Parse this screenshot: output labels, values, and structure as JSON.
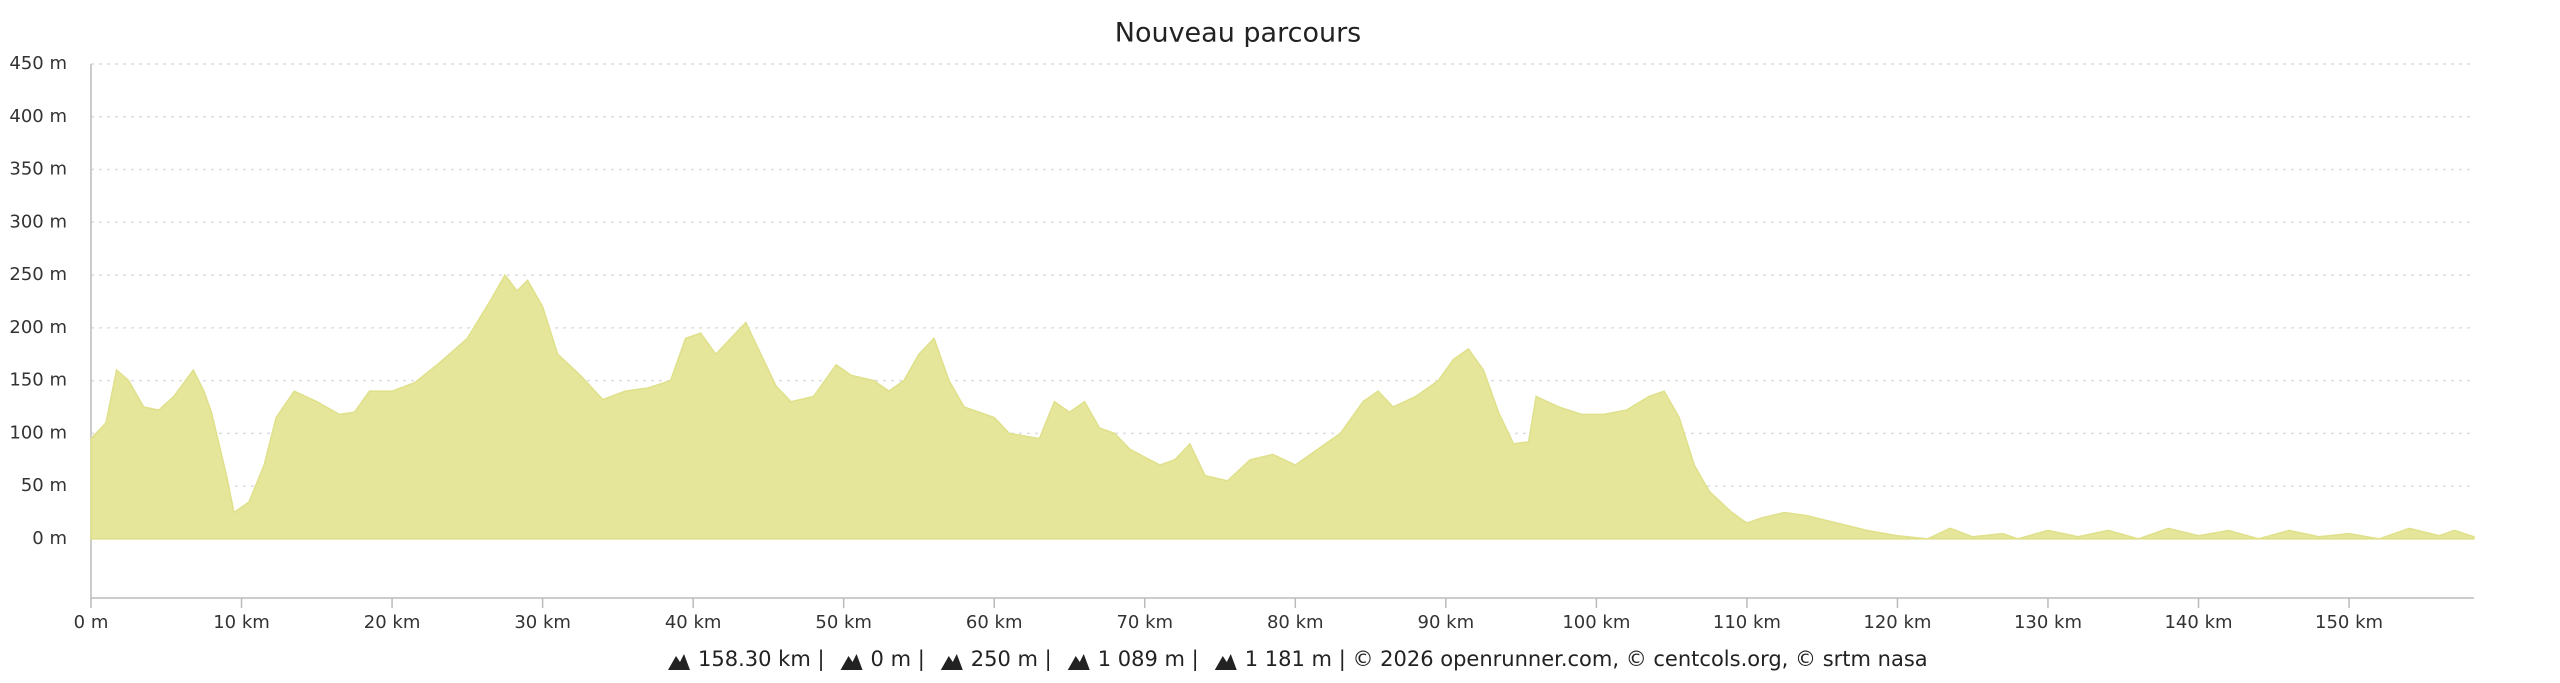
{
  "chart_data": {
    "type": "area",
    "title": "Nouveau parcours",
    "x": [
      0,
      1,
      1.7,
      2.5,
      3.5,
      4.5,
      5.5,
      6.8,
      7.5,
      8,
      9,
      9.5,
      10.5,
      11.5,
      12.3,
      13.5,
      15,
      16.5,
      17.5,
      18.5,
      20,
      21.5,
      23,
      25,
      26.5,
      27.5,
      28.3,
      29,
      30,
      31,
      32.5,
      34,
      35.5,
      37,
      38.5,
      39.5,
      40.5,
      41.5,
      42.5,
      43.5,
      44.5,
      45.5,
      46.5,
      48,
      49.5,
      50.5,
      52,
      53,
      54,
      55,
      56,
      57,
      58,
      60,
      61,
      63,
      64,
      65,
      66,
      67,
      68,
      69,
      71,
      72,
      73,
      74,
      75.5,
      77,
      78.5,
      80,
      81,
      83,
      84.5,
      85.5,
      86.5,
      88,
      89.5,
      90.5,
      91.5,
      92.5,
      93.5,
      94.5,
      95.5,
      96,
      97.5,
      99,
      100.5,
      102,
      103.5,
      104.5,
      105.5,
      106.5,
      107.5,
      109,
      110,
      111,
      112.5,
      114,
      116,
      118,
      120,
      122,
      123.5,
      125,
      127,
      128,
      130,
      132,
      134,
      136,
      138,
      140,
      142,
      144,
      146,
      148,
      150,
      152,
      154,
      156,
      157,
      158.3
    ],
    "values": [
      95,
      110,
      160,
      150,
      125,
      122,
      135,
      160,
      140,
      120,
      60,
      25,
      35,
      70,
      115,
      140,
      130,
      118,
      120,
      140,
      140,
      148,
      165,
      190,
      225,
      250,
      235,
      245,
      220,
      175,
      155,
      132,
      140,
      143,
      150,
      190,
      195,
      175,
      190,
      205,
      175,
      145,
      130,
      135,
      165,
      155,
      150,
      140,
      150,
      175,
      190,
      150,
      125,
      115,
      100,
      95,
      130,
      120,
      130,
      105,
      100,
      85,
      70,
      75,
      90,
      60,
      55,
      75,
      80,
      70,
      80,
      100,
      130,
      140,
      125,
      135,
      150,
      170,
      180,
      160,
      120,
      90,
      92,
      135,
      125,
      118,
      118,
      122,
      135,
      140,
      115,
      70,
      45,
      25,
      15,
      20,
      25,
      22,
      15,
      8,
      3,
      0,
      10,
      2,
      5,
      0,
      8,
      2,
      8,
      0,
      10,
      3,
      8,
      0,
      8,
      2,
      5,
      0,
      10,
      3,
      8,
      2
    ],
    "color": "#e6e69b",
    "line_color": "#dfe08a",
    "xlim": [
      0,
      158.3
    ],
    "xticks": [
      {
        "value": 0,
        "label": "0 m"
      },
      {
        "value": 10,
        "label": "10 km"
      },
      {
        "value": 20,
        "label": "20 km"
      },
      {
        "value": 30,
        "label": "30 km"
      },
      {
        "value": 40,
        "label": "40 km"
      },
      {
        "value": 50,
        "label": "50 km"
      },
      {
        "value": 60,
        "label": "60 km"
      },
      {
        "value": 70,
        "label": "70 km"
      },
      {
        "value": 80,
        "label": "80 km"
      },
      {
        "value": 90,
        "label": "90 km"
      },
      {
        "value": 100,
        "label": "100 km"
      },
      {
        "value": 110,
        "label": "110 km"
      },
      {
        "value": 120,
        "label": "120 km"
      },
      {
        "value": 130,
        "label": "130 km"
      },
      {
        "value": 140,
        "label": "140 km"
      },
      {
        "value": 150,
        "label": "150 km"
      }
    ],
    "ylim": [
      -56,
      450
    ],
    "yticks": [
      {
        "value": 0,
        "label": "0 m"
      },
      {
        "value": 50,
        "label": "50 m"
      },
      {
        "value": 100,
        "label": "100 m"
      },
      {
        "value": 150,
        "label": "150 m"
      },
      {
        "value": 200,
        "label": "200 m"
      },
      {
        "value": 250,
        "label": "250 m"
      },
      {
        "value": 300,
        "label": "300 m"
      },
      {
        "value": 350,
        "label": "350 m"
      },
      {
        "value": 400,
        "label": "400 m"
      },
      {
        "value": 450,
        "label": "450 m"
      }
    ],
    "grid": true,
    "stats": [
      "158.30 km |",
      "0 m |",
      "250 m |",
      "1 089 m |",
      "1 181 m | © 2026 openrunner.com, © centcols.org, © srtm nasa"
    ]
  }
}
